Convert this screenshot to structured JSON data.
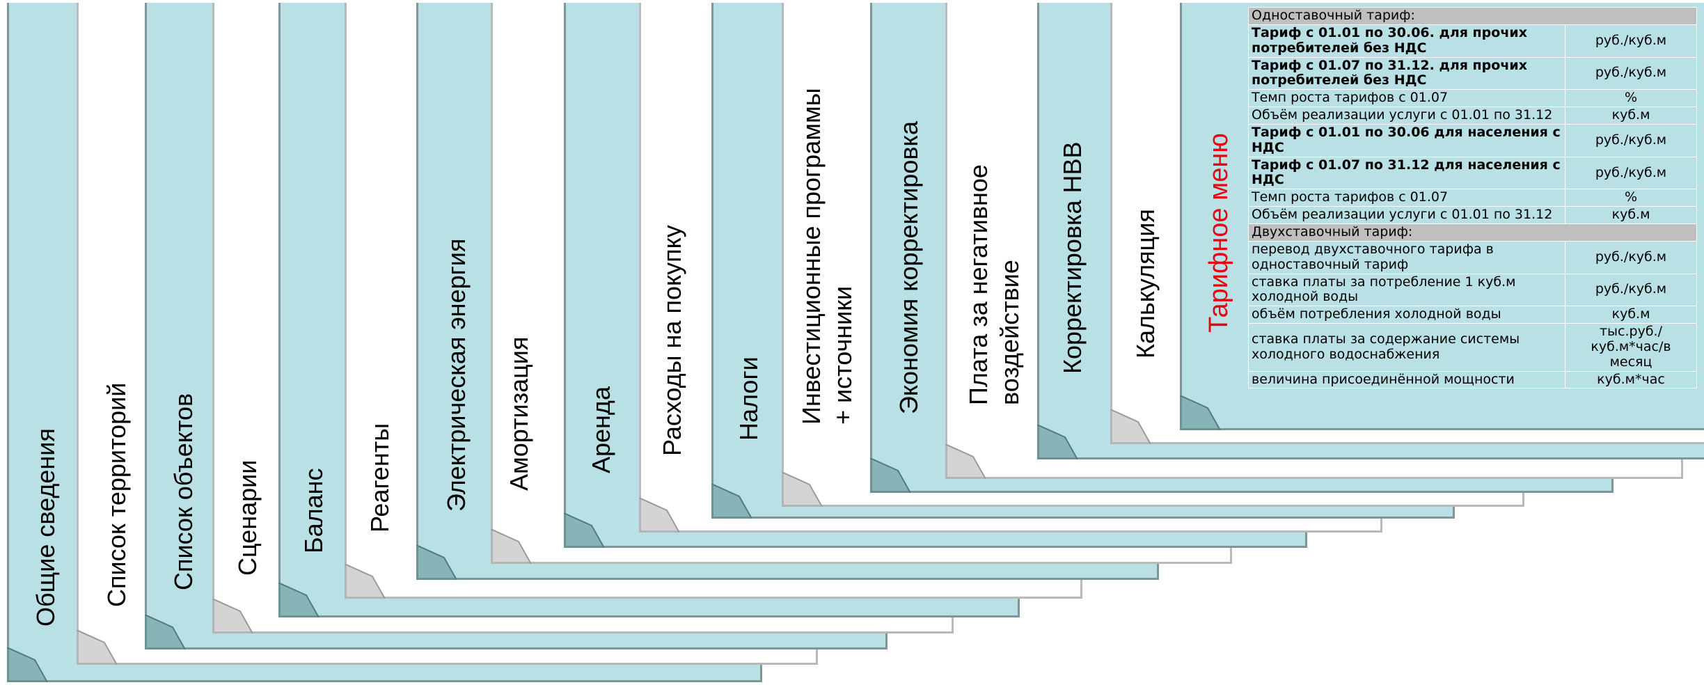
{
  "tabs": [
    {
      "lines": [
        "Общие сведения"
      ],
      "style": "teal"
    },
    {
      "lines": [
        "Список территорий"
      ],
      "style": "white"
    },
    {
      "lines": [
        "Список объектов"
      ],
      "style": "teal"
    },
    {
      "lines": [
        "Сценарии"
      ],
      "style": "white"
    },
    {
      "lines": [
        "Баланс"
      ],
      "style": "teal"
    },
    {
      "lines": [
        "Реагенты"
      ],
      "style": "white"
    },
    {
      "lines": [
        "Электрическая энергия"
      ],
      "style": "teal"
    },
    {
      "lines": [
        "Амортизация"
      ],
      "style": "white"
    },
    {
      "lines": [
        "Аренда"
      ],
      "style": "teal"
    },
    {
      "lines": [
        "Расходы на покупку"
      ],
      "style": "white"
    },
    {
      "lines": [
        "Налоги"
      ],
      "style": "teal"
    },
    {
      "lines": [
        "Инвестиционные программы",
        "+ источники"
      ],
      "style": "white"
    },
    {
      "lines": [
        "Экономия корректировка"
      ],
      "style": "teal"
    },
    {
      "lines": [
        "Плата за негативное",
        "воздействие"
      ],
      "style": "white"
    },
    {
      "lines": [
        "Корректировка НВВ"
      ],
      "style": "teal"
    },
    {
      "lines": [
        "Калькуляция"
      ],
      "style": "white"
    },
    {
      "lines": [
        "Тарифное меню"
      ],
      "style": "teal",
      "active": true,
      "color": "#e30613"
    }
  ],
  "tariff_table": {
    "rows": [
      {
        "type": "header",
        "name": "Одноставочный тариф:"
      },
      {
        "name": "Тариф с 01.01 по 30.06. для прочих потребителей без НДС",
        "unit": "руб./куб.м",
        "bold": true
      },
      {
        "name": "Тариф с 01.07 по 31.12. для прочих потребителей без НДС",
        "unit": "руб./куб.м",
        "bold": true
      },
      {
        "name": "Темп роста тарифов с 01.07",
        "unit": "%"
      },
      {
        "name": "Объём реализации услуги с 01.01 по 31.12",
        "unit": "куб.м"
      },
      {
        "name": "Тариф с 01.01 по 30.06 для населения с НДС",
        "unit": "руб./куб.м",
        "bold": true
      },
      {
        "name": "Тариф с 01.07 по 31.12 для населения с НДС",
        "unit": "руб./куб.м",
        "bold": true
      },
      {
        "name": "Темп роста тарифов с 01.07",
        "unit": "%"
      },
      {
        "name": "Объём реализации услуги с 01.01 по 31.12",
        "unit": "куб.м"
      },
      {
        "type": "header",
        "name": "Двухставочный тариф:"
      },
      {
        "name": "перевод двухставочного тарифа в одноставочный тариф",
        "unit": "руб./куб.м"
      },
      {
        "name": "ставка платы за потребление 1 куб.м холодной воды",
        "unit": "руб./куб.м"
      },
      {
        "name": "объём потребления холодной воды",
        "unit": "куб.м"
      },
      {
        "name": "ставка платы за содержание системы холодного водоснабжения",
        "unit": "тыс.руб./куб.м*час/в месяц"
      },
      {
        "name": "величина присоединённой мощности",
        "unit": "куб.м*час"
      }
    ]
  },
  "colors": {
    "teal": "#b9e0e4",
    "teal_border": "#7f9699",
    "white_border": "#b9b9b9",
    "active_text": "#e30613",
    "header_row": "#bfbfbf",
    "table_cell": "#b9e0e4"
  }
}
